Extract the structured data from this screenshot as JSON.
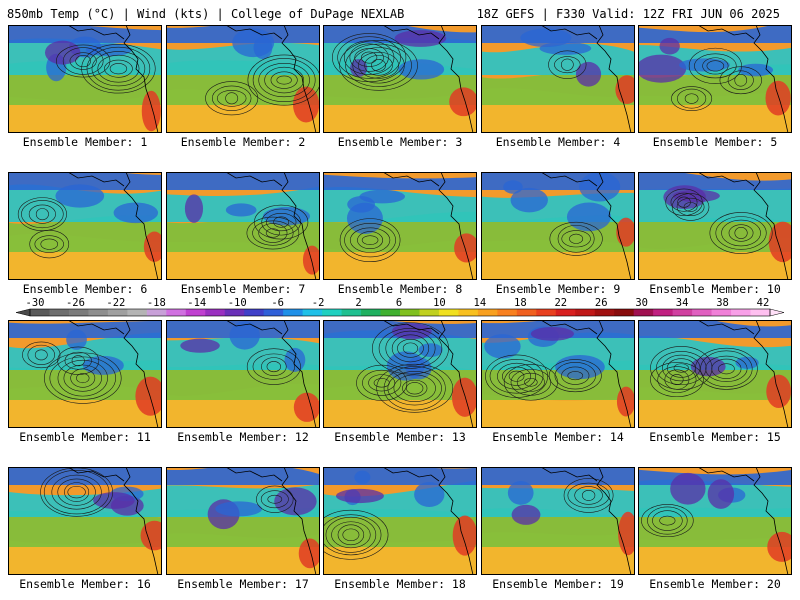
{
  "header": {
    "left": "850mb Temp (°C) | Wind (kts) | College of DuPage NEXLAB",
    "right": "18Z GEFS | F330 Valid: 12Z FRI JUN 06 2025"
  },
  "panels": [
    {
      "label": "Ensemble Member: 1"
    },
    {
      "label": "Ensemble Member: 2"
    },
    {
      "label": "Ensemble Member: 3"
    },
    {
      "label": "Ensemble Member: 4"
    },
    {
      "label": "Ensemble Member: 5"
    },
    {
      "label": "Ensemble Member: 6"
    },
    {
      "label": "Ensemble Member: 7"
    },
    {
      "label": "Ensemble Member: 8"
    },
    {
      "label": "Ensemble Member: 9"
    },
    {
      "label": "Ensemble Member: 10"
    },
    {
      "label": "Ensemble Member: 11"
    },
    {
      "label": "Ensemble Member: 12"
    },
    {
      "label": "Ensemble Member: 13"
    },
    {
      "label": "Ensemble Member: 14"
    },
    {
      "label": "Ensemble Member: 15"
    },
    {
      "label": "Ensemble Member: 16"
    },
    {
      "label": "Ensemble Member: 17"
    },
    {
      "label": "Ensemble Member: 18"
    },
    {
      "label": "Ensemble Member: 19"
    },
    {
      "label": "Ensemble Member: 20"
    }
  ],
  "colorbar": {
    "ticks": [
      "-30",
      "-26",
      "-22",
      "-18",
      "-14",
      "-10",
      "-6",
      "-2",
      "2",
      "6",
      "10",
      "14",
      "18",
      "22",
      "26",
      "30",
      "34",
      "38",
      "42"
    ],
    "colors": [
      "#5a5a5a",
      "#6e6e6e",
      "#7c7c7c",
      "#8e8e8e",
      "#a0a0a0",
      "#b4b4b4",
      "#c8a0d8",
      "#d070e0",
      "#c040d0",
      "#9a30c0",
      "#6a30b8",
      "#4040c8",
      "#3060d8",
      "#2090e8",
      "#20c0e8",
      "#20d0c0",
      "#20c090",
      "#20b060",
      "#40b030",
      "#80c020",
      "#c0d020",
      "#f0e020",
      "#f8c020",
      "#f8a020",
      "#f88020",
      "#f06020",
      "#e84020",
      "#d82020",
      "#c01818",
      "#a01010",
      "#880c0c",
      "#a01050",
      "#c02080",
      "#d040a0",
      "#e060c0",
      "#f080d8",
      "#f8a0e8",
      "#ffc0f0"
    ]
  },
  "palette": {
    "warm_orange": "#f29a2c",
    "warm_yellow": "#f2cc30",
    "green": "#7cc03c",
    "cyan": "#28c4c8",
    "blue": "#2a66d4",
    "purple": "#5a2ea8",
    "red": "#e03c24",
    "contour": "#1a1a1a"
  }
}
